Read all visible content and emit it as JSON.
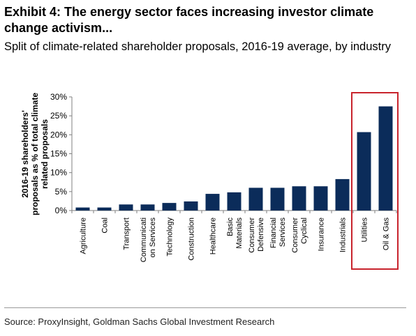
{
  "header": {
    "title": "Exhibit 4: The energy sector faces increasing investor climate change activism...",
    "subtitle": "Split of climate-related shareholder proposals, 2016-19 average, by industry"
  },
  "source": "Source: ProxyInsight, Goldman Sachs Global Investment Research",
  "colors": {
    "bar": "#0b2c5a",
    "highlight_box": "#c8232c",
    "axis": "#7f7f7f"
  },
  "chart_data": {
    "type": "bar",
    "ylabel_lines": [
      "2016-19 shareholders'",
      "proposals as % of total climate",
      "related proposals"
    ],
    "categories": [
      [
        "Agriculture"
      ],
      [
        "Coal"
      ],
      [
        "Transport"
      ],
      [
        "Communicati",
        "on Services"
      ],
      [
        "Technology"
      ],
      [
        "Construction"
      ],
      [
        "Healthcare"
      ],
      [
        "Basic",
        "Materials"
      ],
      [
        "Consumer",
        "Defensive"
      ],
      [
        "Financial",
        "Services"
      ],
      [
        "Consumer",
        "Cyclical"
      ],
      [
        "Insurance"
      ],
      [
        "Industrials"
      ],
      [
        "Utilities"
      ],
      [
        "Oil & Gas"
      ]
    ],
    "values": [
      0.8,
      0.8,
      1.6,
      1.6,
      2.0,
      2.4,
      4.4,
      4.8,
      6.0,
      6.0,
      6.4,
      6.4,
      8.3,
      20.7,
      27.5
    ],
    "ylim": [
      0,
      30
    ],
    "yticks": [
      0,
      5,
      10,
      15,
      20,
      25,
      30
    ],
    "ytick_labels": [
      "0%",
      "5%",
      "10%",
      "15%",
      "20%",
      "25%",
      "30%"
    ],
    "highlighted_categories": [
      "Utilities",
      "Oil & Gas"
    ],
    "grid": false
  }
}
